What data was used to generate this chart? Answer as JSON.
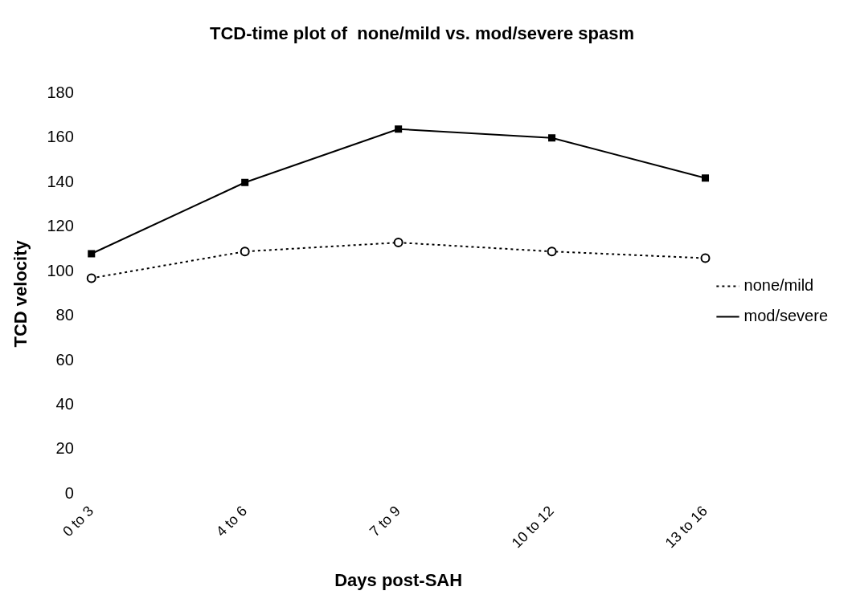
{
  "chart_data": {
    "type": "line",
    "title": "TCD-time plot of  none/mild vs. mod/severe spasm",
    "xlabel": "Days post-SAH",
    "ylabel": "TCD velocity",
    "categories": [
      "0 to 3",
      "4 to 6",
      "7 to 9",
      "10 to 12",
      "13 to 16"
    ],
    "series": [
      {
        "name": "none/mild",
        "color": "#000000",
        "values": [
          97,
          109,
          113,
          109,
          106
        ],
        "marker": "circle",
        "line_style": "dotted"
      },
      {
        "name": "mod/severe",
        "color": "#000000",
        "values": [
          108,
          140,
          164,
          160,
          142
        ],
        "marker": "square",
        "line_style": "solid"
      }
    ],
    "ylim": [
      0,
      180
    ],
    "yticks": [
      0,
      20,
      40,
      60,
      80,
      100,
      120,
      140,
      160,
      180
    ],
    "grid": false,
    "legend": "right"
  }
}
